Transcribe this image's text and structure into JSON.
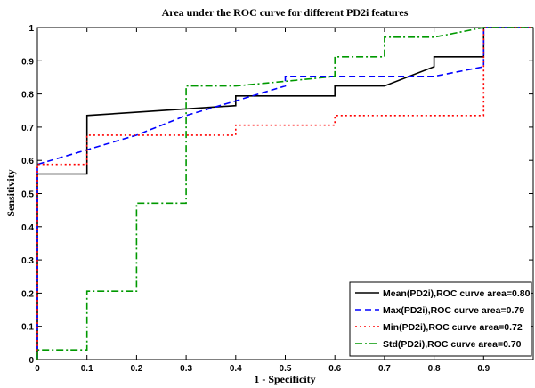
{
  "chart_data": {
    "type": "line",
    "title": "Area under the ROC curve for different PD2i features",
    "xlabel": "1 - Specificity",
    "ylabel": "Sensitivity",
    "xlim": [
      0,
      1
    ],
    "ylim": [
      0,
      1
    ],
    "x_ticks": [
      0,
      0.1,
      0.2,
      0.3,
      0.4,
      0.5,
      0.6,
      0.7,
      0.8,
      0.9
    ],
    "x_tick_labels": [
      "0",
      "0.1",
      "0.2",
      "0.3",
      "0.4",
      "0.5",
      "0.6",
      "0.7",
      "0.8",
      "0.9"
    ],
    "y_ticks": [
      0,
      0.1,
      0.2,
      0.3,
      0.4,
      0.5,
      0.6,
      0.7,
      0.8,
      0.9,
      1
    ],
    "y_tick_labels": [
      "0",
      "0.1",
      "0.2",
      "0.3",
      "0.4",
      "0.5",
      "0.6",
      "0.7",
      "0.8",
      "0.9",
      "1"
    ],
    "grid": false,
    "legend_position": "bottom-right",
    "series": [
      {
        "name": "Mean(PD2i),ROC curve area=0.80",
        "color": "#000000",
        "style": "solid",
        "x": [
          0,
          0,
          0.1,
          0.1,
          0.4,
          0.4,
          0.6,
          0.6,
          0.7,
          0.8,
          0.8,
          0.9,
          0.9,
          1.0
        ],
        "y": [
          0,
          0.559,
          0.559,
          0.735,
          0.765,
          0.794,
          0.794,
          0.824,
          0.824,
          0.882,
          0.912,
          0.912,
          1.0,
          1.0
        ]
      },
      {
        "name": "Max(PD2i),ROC curve area=0.79",
        "color": "#0000ff",
        "style": "dashed",
        "x": [
          0,
          0,
          0.2,
          0.3,
          0.4,
          0.5,
          0.5,
          0.6,
          0.7,
          0.8,
          0.9,
          0.9,
          1.0
        ],
        "y": [
          0,
          0.588,
          0.676,
          0.735,
          0.779,
          0.824,
          0.853,
          0.853,
          0.853,
          0.853,
          0.882,
          1.0,
          1.0
        ]
      },
      {
        "name": "Min(PD2i),ROC curve area=0.72",
        "color": "#ff0000",
        "style": "dotted",
        "x": [
          0,
          0,
          0.1,
          0.1,
          0.4,
          0.4,
          0.6,
          0.6,
          0.9,
          0.9,
          1.0
        ],
        "y": [
          0,
          0.588,
          0.588,
          0.676,
          0.676,
          0.706,
          0.706,
          0.735,
          0.735,
          1.0,
          1.0
        ]
      },
      {
        "name": "Std(PD2i),ROC curve area=0.70",
        "color": "#009900",
        "style": "dashdot",
        "x": [
          0,
          0,
          0.1,
          0.1,
          0.2,
          0.2,
          0.3,
          0.3,
          0.4,
          0.5,
          0.6,
          0.6,
          0.7,
          0.7,
          0.8,
          0.9,
          1.0
        ],
        "y": [
          0,
          0.029,
          0.029,
          0.206,
          0.206,
          0.471,
          0.471,
          0.824,
          0.824,
          0.838,
          0.853,
          0.912,
          0.912,
          0.971,
          0.971,
          1.0,
          1.0
        ]
      }
    ]
  }
}
